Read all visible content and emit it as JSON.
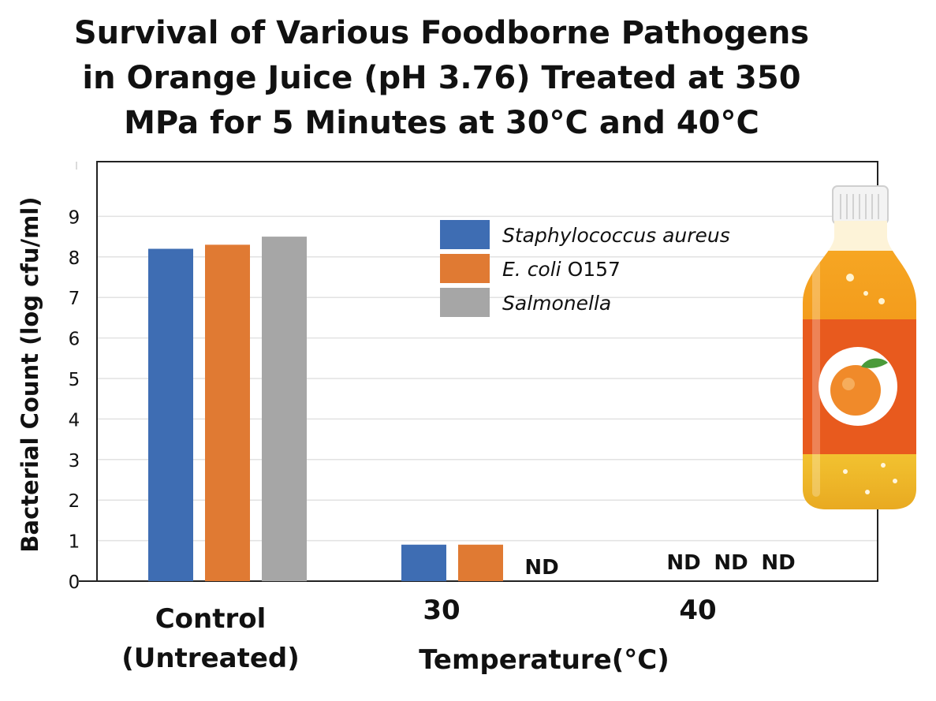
{
  "chart_data": {
    "type": "bar",
    "title_lines": [
      "Survival of Various Foodborne Pathogens",
      "in Orange Juice (pH 3.76) Treated at 350",
      "MPa for 5 Minutes at 30°C and 40°C"
    ],
    "ylabel": "Bacterial Count (log cfu/ml)",
    "xlabel": "Temperature(°C)",
    "ylim": [
      0,
      10
    ],
    "yticks": [
      "0",
      "1",
      "2",
      "3",
      "4",
      "5",
      "6",
      "7",
      "8",
      "9"
    ],
    "grid": true,
    "legend_position": "top-right",
    "categories": [
      {
        "label_lines": [
          "Control",
          "(Untreated)"
        ]
      },
      {
        "label_lines": [
          "30"
        ]
      },
      {
        "label_lines": [
          "40"
        ]
      }
    ],
    "series": [
      {
        "name_italic": "Staphylococcus aureus",
        "name_plain": "",
        "color": "#3e6db3",
        "values": [
          8.2,
          0.9,
          null
        ]
      },
      {
        "name_italic": "E. coli",
        "name_plain": " O157",
        "color": "#e07a33",
        "values": [
          8.3,
          0.9,
          null
        ]
      },
      {
        "name_italic": "Salmonella",
        "name_plain": "",
        "color": "#a6a6a6",
        "values": [
          8.5,
          null,
          null
        ]
      }
    ],
    "not_detected_label": "ND"
  },
  "decoration": {
    "icon": "orange-juice-bottle-icon"
  }
}
